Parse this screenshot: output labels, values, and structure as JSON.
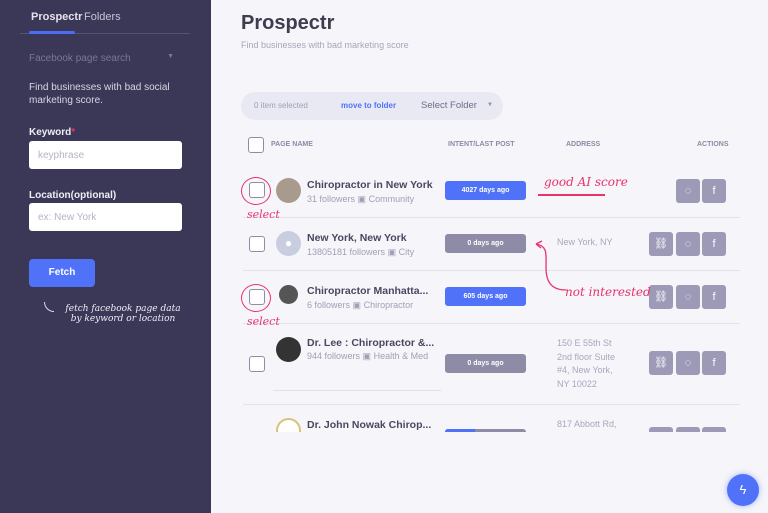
{
  "sidebar": {
    "tabs": [
      "Prospectr",
      "Folders"
    ],
    "source_select": "Facebook page search",
    "description": "Find businesses with bad social marketing score.",
    "keyword_label": "Keyword",
    "keyword_placeholder": "keyphrase",
    "location_label": "Location(optional)",
    "location_placeholder": "ex: New York",
    "fetch_label": "Fetch",
    "annotation": "fetch facebook page data by keyword or location"
  },
  "header": {
    "title": "Prospectr",
    "subtitle": "Find businesses with bad marketing score"
  },
  "toolbar": {
    "selected": "0 item selected",
    "move": "move to folder",
    "folder": "Select Folder"
  },
  "table": {
    "columns": [
      "PAGE NAME",
      "INTENT/LAST POST",
      "ADDRESS",
      "ACTIONS"
    ],
    "rows": [
      {
        "name": "Chiropractor in New York",
        "followers": "31 followers",
        "category": "Community",
        "last_post": "4027 days ago",
        "status": "blue",
        "address": ""
      },
      {
        "name": "New York, New York",
        "followers": "13805181 followers",
        "category": "City",
        "last_post": "0 days ago",
        "status": "gray",
        "address": "New York, NY"
      },
      {
        "name": "Chiropractor Manhatta...",
        "followers": "6 followers",
        "category": "Chiropractor",
        "last_post": "605 days ago",
        "status": "blue",
        "address": ""
      },
      {
        "name": "Dr. Lee : Chiropractor &...",
        "followers": "944 followers",
        "category": "Health & Med",
        "last_post": "0 days ago",
        "status": "gray",
        "address": "150 E 55th St 2nd floor Suite #4, New York, NY 10022"
      },
      {
        "name": "Dr. John Nowak Chirop...",
        "followers": "",
        "category": "",
        "last_post": "",
        "status": "blue",
        "address": "817 Abbott Rd,"
      }
    ]
  },
  "annotations": {
    "select1": "select",
    "select2": "select",
    "good": "good AI score",
    "not": "not interested"
  },
  "colors": {
    "sidebar": "#3b3756",
    "accent": "#4f72f9",
    "annotation": "#e8336b"
  }
}
